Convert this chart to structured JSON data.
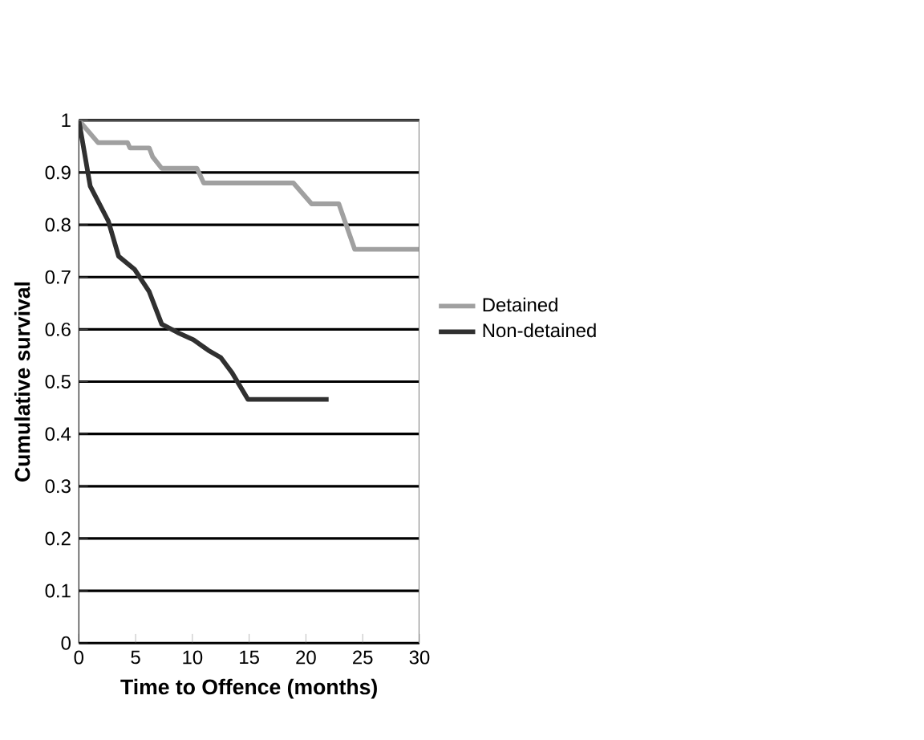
{
  "chart_data": {
    "type": "line",
    "xlabel": "Time to Offence (months)",
    "ylabel": "Cumulative survival",
    "xlim": [
      0,
      30
    ],
    "xticks": [
      0,
      5,
      10,
      15,
      20,
      25,
      30
    ],
    "ylim": [
      0,
      1
    ],
    "yticks": [
      0,
      0.1,
      0.2,
      0.3,
      0.4,
      0.5,
      0.6,
      0.7,
      0.8,
      0.9,
      1
    ],
    "grid": "y",
    "legend": "right",
    "marker": "none",
    "line_style": "solid",
    "series": [
      {
        "name": "Detained",
        "color": "#a0a0a0",
        "x": [
          0,
          1.7,
          4.3,
          4.5,
          6.2,
          6.5,
          7.3,
          10.4,
          11,
          18.9,
          20.5,
          22.9,
          24.3,
          30
        ],
        "values": [
          1,
          0.957,
          0.957,
          0.947,
          0.947,
          0.93,
          0.908,
          0.908,
          0.88,
          0.88,
          0.84,
          0.84,
          0.753,
          0.753
        ]
      },
      {
        "name": "Non-detained",
        "color": "#303030",
        "x": [
          0,
          1.0,
          2.6,
          3.5,
          4.9,
          6.2,
          7.3,
          8.7,
          10.1,
          11.4,
          12.5,
          13.5,
          14.9,
          22.0
        ],
        "values": [
          1,
          0.874,
          0.807,
          0.74,
          0.715,
          0.672,
          0.61,
          0.594,
          0.58,
          0.56,
          0.546,
          0.517,
          0.466,
          0.466
        ]
      }
    ]
  }
}
